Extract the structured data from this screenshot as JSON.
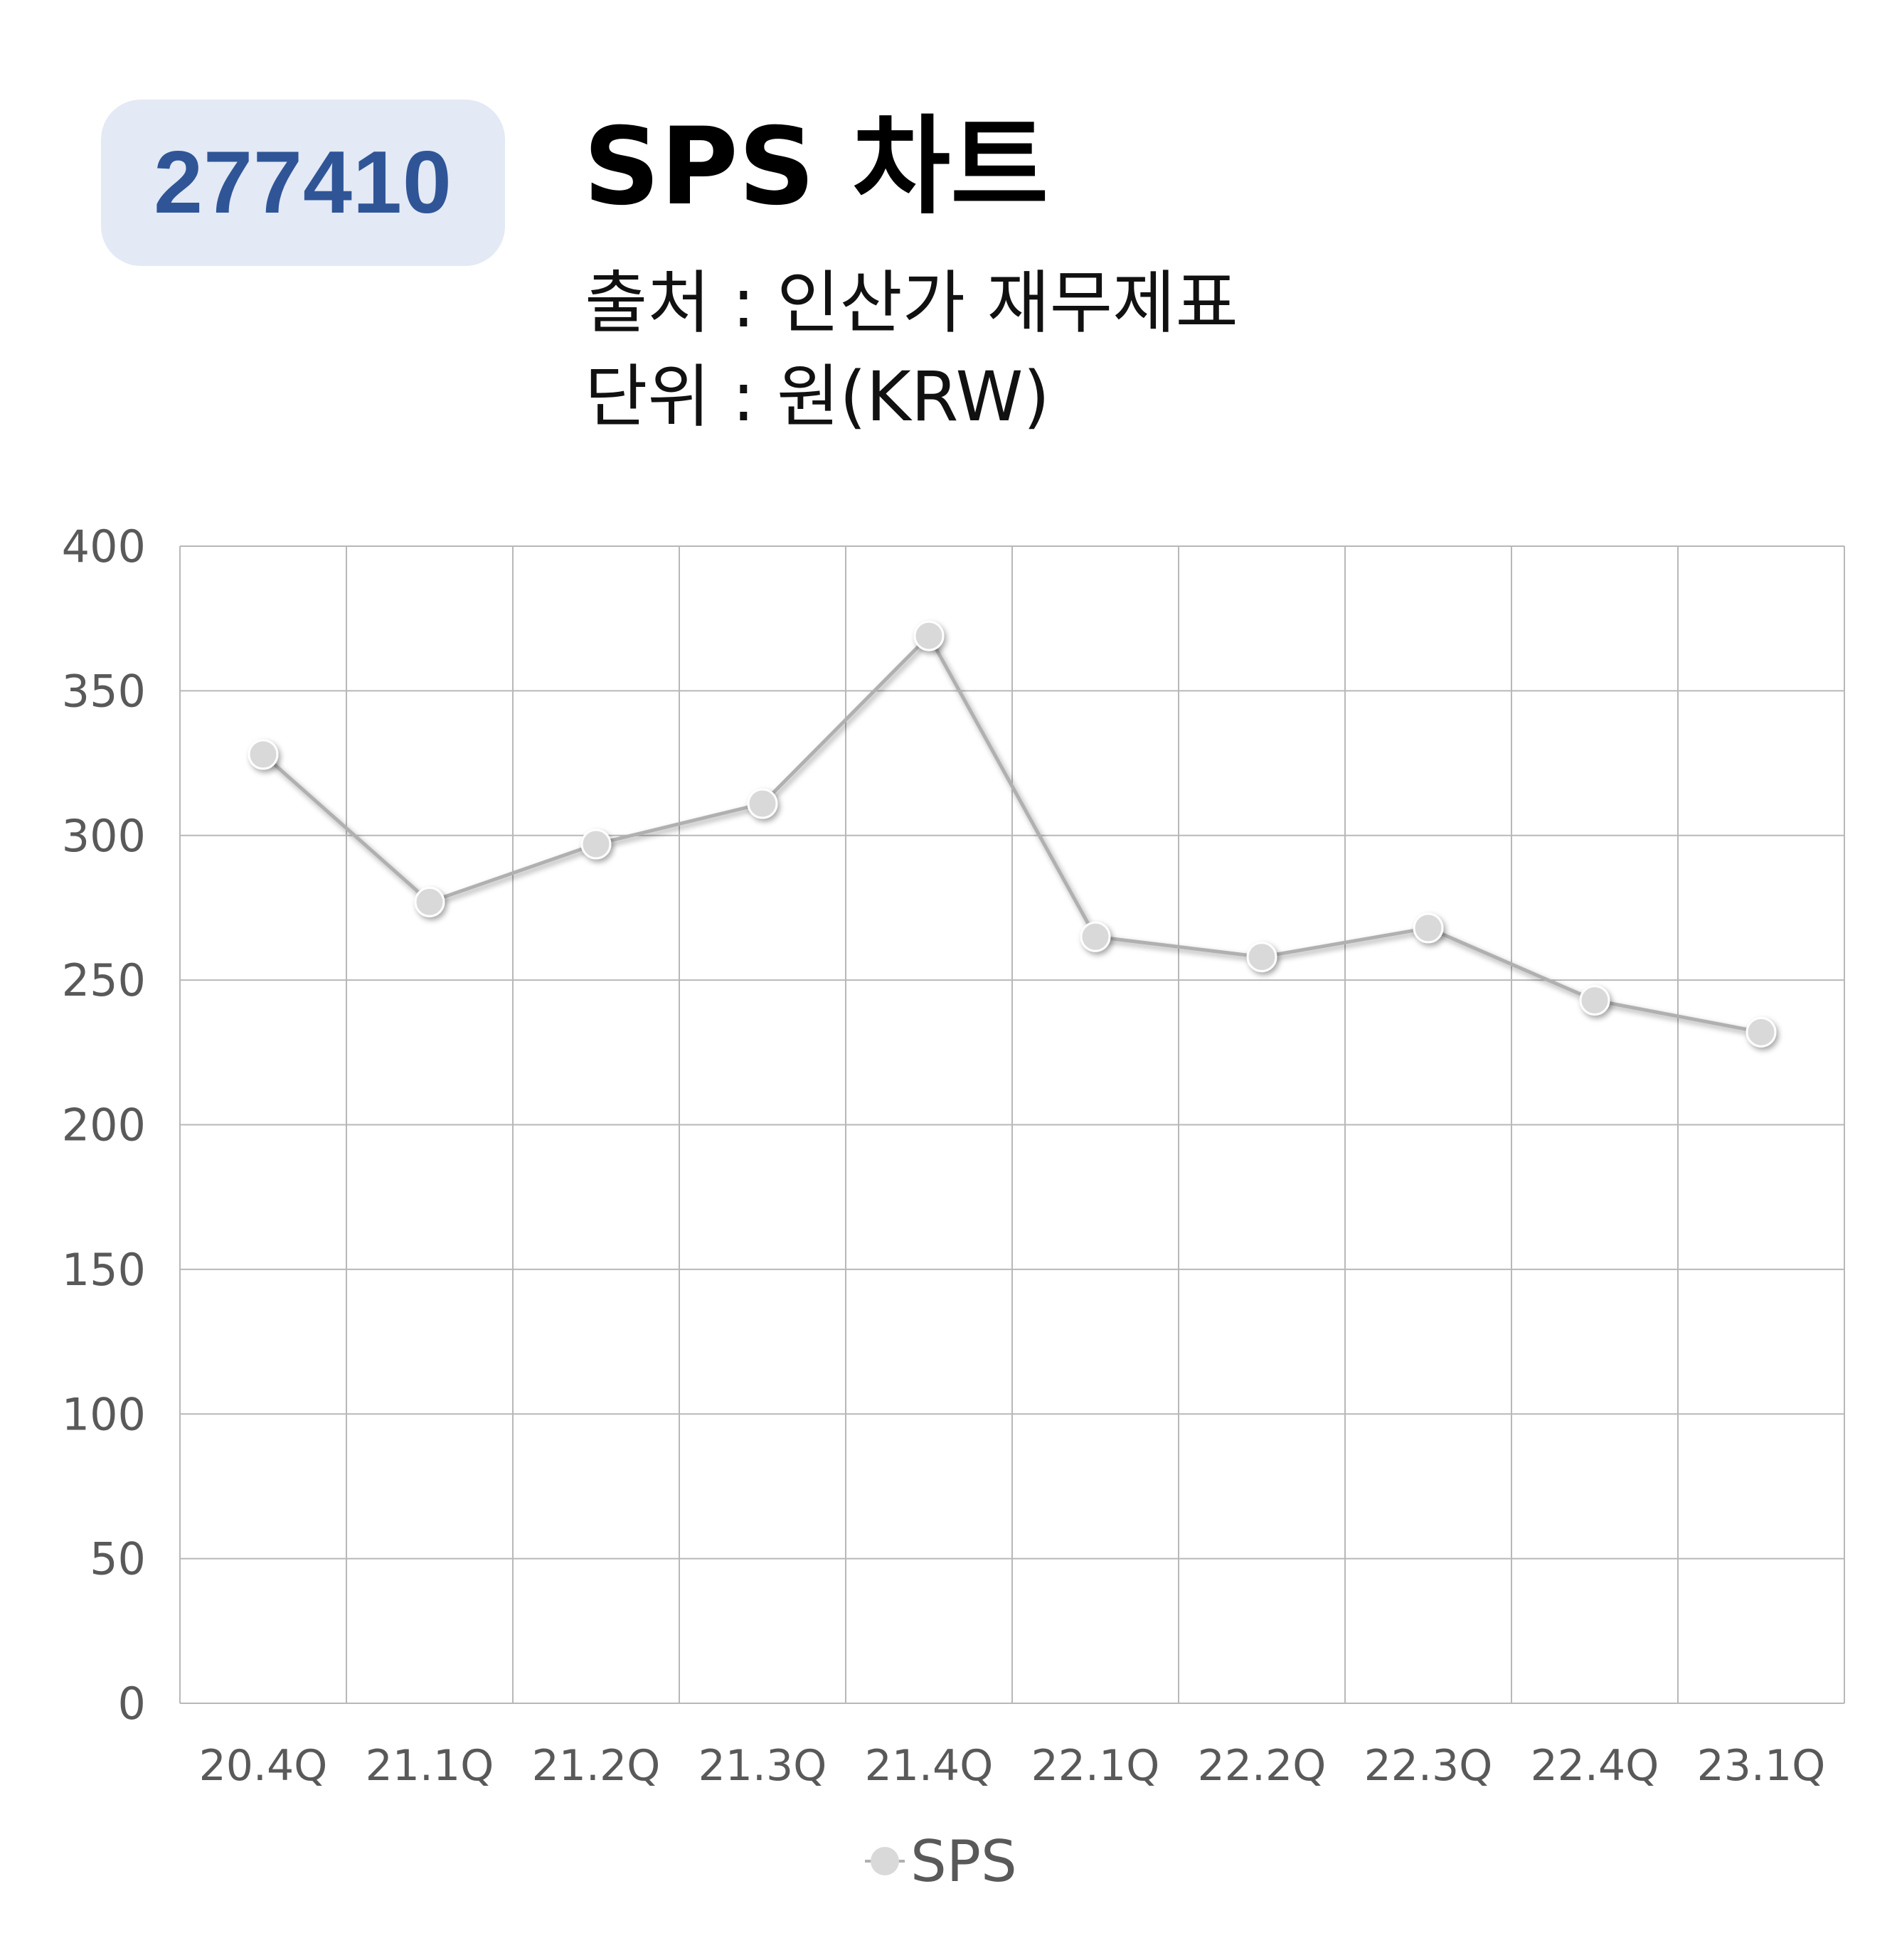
{
  "header": {
    "code": "277410",
    "title": "SPS 차트",
    "source": "출처 : 인산가 재무제표",
    "unit": "단위 : 원(KRW)"
  },
  "chart_data": {
    "type": "line",
    "categories": [
      "20.4Q",
      "21.1Q",
      "21.2Q",
      "21.3Q",
      "21.4Q",
      "22.1Q",
      "22.2Q",
      "22.3Q",
      "22.4Q",
      "23.1Q"
    ],
    "series": [
      {
        "name": "SPS",
        "values": [
          328,
          277,
          297,
          311,
          369,
          265,
          258,
          268,
          243,
          232
        ]
      }
    ],
    "ylim": [
      0,
      400
    ],
    "yticks": [
      0,
      50,
      100,
      150,
      200,
      250,
      300,
      350,
      400
    ],
    "grid": true,
    "legend": "bottom-center",
    "colors": {
      "grid": "#b8b8b8",
      "line": "#b0b0b0",
      "marker": "#d9d9d9",
      "tick_text": "#595959"
    }
  }
}
